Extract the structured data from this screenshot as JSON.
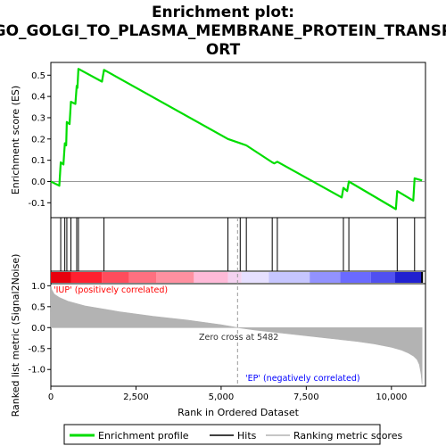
{
  "chart_data": {
    "type": "line",
    "title_lines": [
      "Enrichment plot:",
      "GO_GOLGI_TO_PLASMA_MEMBRANE_PROTEIN_TRANSP",
      "ORT"
    ],
    "xlabel": "Rank in Ordered Dataset",
    "ylabel_top": "Enrichment score (ES)",
    "ylabel_bottom": "Ranked list metric (Signal2Noise)",
    "x_range": [
      0,
      11000
    ],
    "x_ticks": [
      0,
      2500,
      5000,
      7500,
      10000
    ],
    "x_tick_labels": [
      "0",
      "2,500",
      "5,000",
      "7,500",
      "10,000"
    ],
    "es_ylim": [
      -0.17,
      0.56
    ],
    "es_ticks": [
      -0.1,
      0.0,
      0.1,
      0.2,
      0.3,
      0.4,
      0.5
    ],
    "es_tick_labels": [
      "-0.1",
      "0.0",
      "0.1",
      "0.2",
      "0.3",
      "0.4",
      "0.5"
    ],
    "metric_ylim": [
      -1.4,
      1.05
    ],
    "metric_ticks": [
      -1.0,
      -0.5,
      0.0,
      0.5,
      1.0
    ],
    "metric_tick_labels": [
      "-1.0",
      "-0.5",
      "0.0",
      "0.5",
      "1.0"
    ],
    "total_ranks": 10900,
    "zero_cross": 5482,
    "zero_cross_label": "Zero cross at 5482",
    "pos_label": "'IUP' (positively correlated)",
    "neg_label": "'EP' (negatively correlated)",
    "hits": [
      290,
      410,
      470,
      590,
      760,
      810,
      1560,
      5200,
      5560,
      5740,
      6500,
      6650,
      8590,
      8750,
      10170,
      10680
    ],
    "es_curve": {
      "x": [
        0,
        250,
        290,
        370,
        410,
        450,
        470,
        550,
        590,
        720,
        760,
        780,
        810,
        1500,
        1560,
        5200,
        5560,
        5740,
        6500,
        6560,
        6650,
        8540,
        8590,
        8700,
        8750,
        10130,
        10170,
        10640,
        10680,
        10900
      ],
      "y": [
        0.0,
        -0.02,
        0.09,
        0.08,
        0.18,
        0.17,
        0.28,
        0.27,
        0.375,
        0.365,
        0.45,
        0.44,
        0.53,
        0.47,
        0.525,
        0.2,
        0.18,
        0.17,
        0.09,
        0.085,
        0.093,
        -0.075,
        -0.03,
        -0.045,
        0.0,
        -0.13,
        -0.045,
        -0.09,
        0.015,
        0.005
      ]
    },
    "metric_curve": {
      "x": [
        0,
        30,
        100,
        250,
        500,
        1000,
        2000,
        3000,
        4000,
        5000,
        5482,
        6000,
        7000,
        8000,
        9000,
        9500,
        10000,
        10300,
        10500,
        10650,
        10750,
        10820,
        10870,
        10900
      ],
      "y": [
        1.02,
        0.9,
        0.8,
        0.72,
        0.63,
        0.52,
        0.38,
        0.27,
        0.18,
        0.07,
        0.0,
        -0.06,
        -0.15,
        -0.24,
        -0.33,
        -0.39,
        -0.47,
        -0.54,
        -0.61,
        -0.68,
        -0.76,
        -0.88,
        -1.1,
        -1.35
      ]
    },
    "colors": {
      "enrichment": "#00dd00",
      "hits": "#000000",
      "metric_fill": "#b3b3b3",
      "pos_label": "#ff0000",
      "neg_label": "#0000ff",
      "zero_line": "#999999"
    },
    "color_bar": [
      {
        "from": 0,
        "to": 600,
        "color": "#e8000d"
      },
      {
        "from": 600,
        "to": 1500,
        "color": "#ff2030"
      },
      {
        "from": 1500,
        "to": 2300,
        "color": "#ff4c5c"
      },
      {
        "from": 2300,
        "to": 3100,
        "color": "#ff7080"
      },
      {
        "from": 3100,
        "to": 4200,
        "color": "#ff90a0"
      },
      {
        "from": 4200,
        "to": 5200,
        "color": "#ffbad8"
      },
      {
        "from": 5200,
        "to": 5600,
        "color": "#f4d2f0"
      },
      {
        "from": 5600,
        "to": 6400,
        "color": "#e6e0ff"
      },
      {
        "from": 6400,
        "to": 7600,
        "color": "#c6c6ff"
      },
      {
        "from": 7600,
        "to": 8500,
        "color": "#9292ff"
      },
      {
        "from": 8500,
        "to": 9400,
        "color": "#6a6aff"
      },
      {
        "from": 9400,
        "to": 10100,
        "color": "#5050f0"
      },
      {
        "from": 10100,
        "to": 10900,
        "color": "#2020d0"
      }
    ],
    "legend": [
      {
        "label": "Enrichment profile",
        "kind": "line",
        "color": "#00dd00"
      },
      {
        "label": "Hits",
        "kind": "line",
        "color": "#000000"
      },
      {
        "label": "Ranking metric scores",
        "kind": "line",
        "color": "#b3b3b3"
      }
    ]
  }
}
